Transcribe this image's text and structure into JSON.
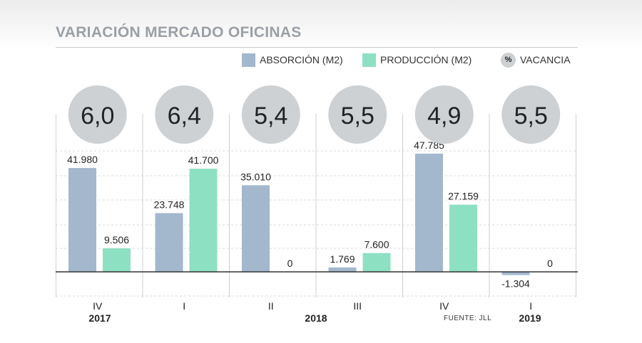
{
  "header": {
    "title": "VARIACIÓN MERCADO OFICINAS"
  },
  "legend": {
    "absorcion": "ABSORCIÓN (M2)",
    "produccion": "PRODUCCIÓN (M2)",
    "vacancia_symbol": "%",
    "vacancia": "VACANCIA"
  },
  "source": "FUENTE: JLL",
  "colors": {
    "absorcion": "#a3b7cd",
    "produccion": "#8ee0c2",
    "vacancia": "#cdd1d4"
  },
  "chart_data": {
    "type": "bar",
    "categories": [
      "IV",
      "I",
      "II",
      "III",
      "IV",
      "I"
    ],
    "years": [
      {
        "label": "2017",
        "from": 0,
        "to": 0
      },
      {
        "label": "2018",
        "from": 1,
        "to": 4
      },
      {
        "label": "2019",
        "from": 5,
        "to": 5
      }
    ],
    "series": [
      {
        "name": "ABSORCIÓN (M2)",
        "values": [
          41980,
          23748,
          35010,
          1769,
          47785,
          -1304
        ],
        "labels": [
          "41.980",
          "23.748",
          "35.010",
          "1.769",
          "47.785",
          "-1.304"
        ]
      },
      {
        "name": "PRODUCCIÓN (M2)",
        "values": [
          9506,
          41700,
          0,
          7600,
          27159,
          0
        ],
        "labels": [
          "9.506",
          "41.700",
          "0",
          "7.600",
          "27.159",
          "0"
        ]
      }
    ],
    "vacancia": {
      "name": "VACANCIA",
      "values": [
        "6,0",
        "6,4",
        "5,4",
        "5,5",
        "4,9",
        "5,5"
      ]
    },
    "ylim": [
      -10000,
      50000
    ],
    "grid": true,
    "legend_position": "top-right"
  }
}
